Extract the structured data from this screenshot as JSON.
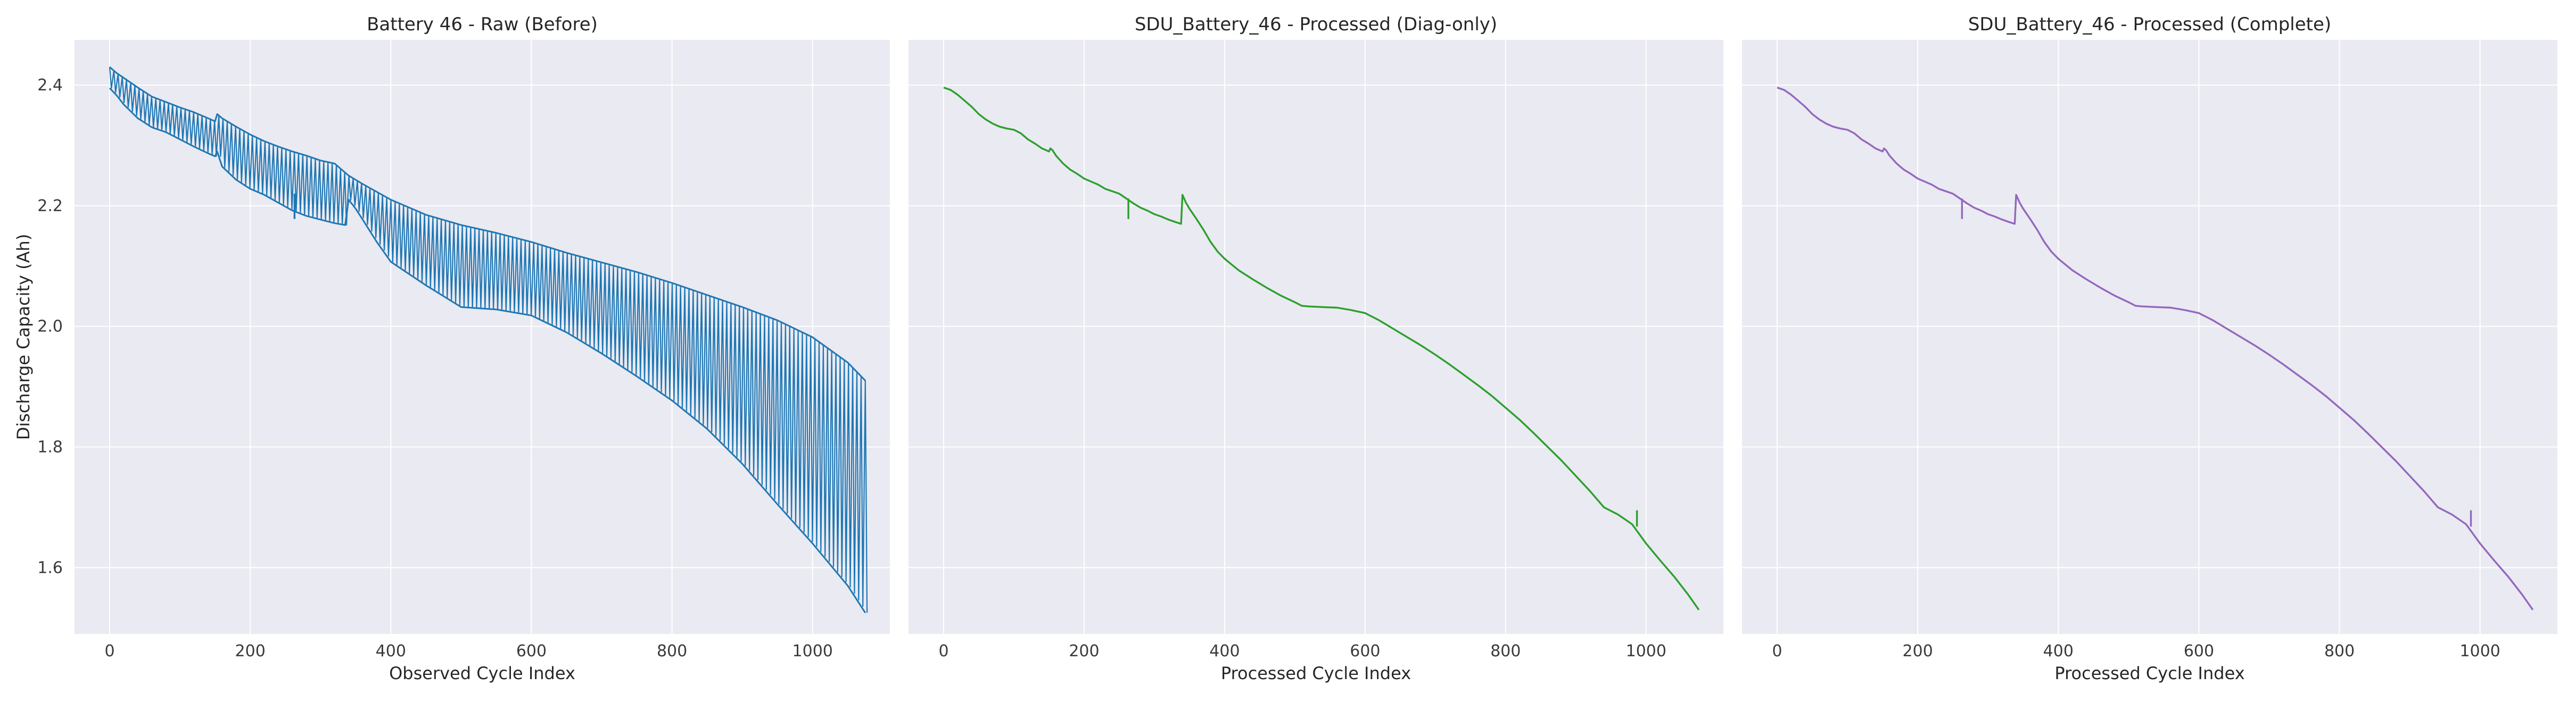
{
  "figure": {
    "sharey": true,
    "style": "seaborn-darkgrid",
    "colors": {
      "face": "#eaeaf2",
      "grid": "#ffffff",
      "text": "#262626"
    }
  },
  "chart_data": [
    {
      "type": "line",
      "title": "Battery 46 - Raw (Before)",
      "xlabel": "Observed Cycle Index",
      "ylabel": "Discharge Capacity (Ah)",
      "xlim": [
        -50,
        1110
      ],
      "ylim": [
        1.49,
        2.475
      ],
      "xticks": [
        0,
        200,
        400,
        600,
        800,
        1000
      ],
      "yticks": [
        1.6,
        1.8,
        2.0,
        2.2,
        2.4
      ],
      "color": "#1f77b4",
      "grid": true,
      "legend": "none",
      "oscillating_band": true,
      "upper_envelope": {
        "x": [
          0,
          10,
          20,
          40,
          60,
          80,
          100,
          120,
          140,
          150,
          153,
          160,
          180,
          200,
          220,
          240,
          260,
          280,
          300,
          320,
          340,
          360,
          380,
          400,
          450,
          500,
          550,
          600,
          650,
          700,
          750,
          800,
          850,
          900,
          950,
          1000,
          1050,
          1075
        ],
        "y": [
          2.43,
          2.42,
          2.412,
          2.396,
          2.381,
          2.372,
          2.363,
          2.355,
          2.345,
          2.34,
          2.352,
          2.345,
          2.331,
          2.318,
          2.307,
          2.298,
          2.29,
          2.283,
          2.275,
          2.27,
          2.25,
          2.236,
          2.223,
          2.21,
          2.185,
          2.168,
          2.155,
          2.14,
          2.122,
          2.106,
          2.09,
          2.072,
          2.052,
          2.032,
          2.01,
          1.982,
          1.94,
          1.91
        ]
      },
      "lower_envelope": {
        "x": [
          0,
          10,
          20,
          40,
          60,
          80,
          100,
          120,
          140,
          150,
          153,
          160,
          180,
          200,
          220,
          240,
          260,
          280,
          300,
          320,
          335,
          340,
          350,
          360,
          380,
          400,
          450,
          500,
          550,
          600,
          650,
          700,
          750,
          800,
          850,
          900,
          950,
          1000,
          1050,
          1075
        ],
        "y": [
          2.395,
          2.383,
          2.368,
          2.345,
          2.33,
          2.322,
          2.31,
          2.298,
          2.287,
          2.282,
          2.29,
          2.265,
          2.243,
          2.228,
          2.218,
          2.205,
          2.192,
          2.183,
          2.177,
          2.171,
          2.168,
          2.21,
          2.195,
          2.177,
          2.14,
          2.107,
          2.068,
          2.032,
          2.028,
          2.018,
          1.99,
          1.955,
          1.917,
          1.877,
          1.83,
          1.772,
          1.705,
          1.64,
          1.57,
          1.525
        ]
      },
      "spikes": [
        {
          "x": 263,
          "y_top": 2.22,
          "y_bottom": 2.178
        }
      ]
    },
    {
      "type": "line",
      "title": "SDU_Battery_46 - Processed (Diag-only)",
      "xlabel": "Processed Cycle Index",
      "ylabel": "",
      "xlim": [
        -50,
        1110
      ],
      "ylim": [
        1.49,
        2.475
      ],
      "xticks": [
        0,
        200,
        400,
        600,
        800,
        1000
      ],
      "yticks": [
        1.6,
        1.8,
        2.0,
        2.2,
        2.4
      ],
      "color": "#2ca02c",
      "grid": true,
      "legend": "none",
      "series": [
        {
          "x": [
            0,
            10,
            20,
            30,
            40,
            50,
            60,
            70,
            80,
            90,
            100,
            110,
            120,
            130,
            140,
            150,
            152,
            155,
            160,
            170,
            180,
            190,
            200,
            210,
            220,
            230,
            240,
            250,
            260,
            270,
            280,
            290,
            300,
            310,
            320,
            330,
            338,
            340,
            345,
            350,
            360,
            370,
            380,
            390,
            400,
            420,
            440,
            460,
            480,
            500,
            510,
            520,
            540,
            560,
            580,
            600,
            620,
            640,
            660,
            680,
            700,
            720,
            740,
            760,
            780,
            800,
            820,
            840,
            860,
            880,
            900,
            920,
            940,
            960,
            980,
            1000,
            1020,
            1040,
            1060,
            1075
          ],
          "y": [
            2.396,
            2.392,
            2.384,
            2.374,
            2.364,
            2.352,
            2.343,
            2.336,
            2.331,
            2.328,
            2.326,
            2.32,
            2.31,
            2.303,
            2.295,
            2.29,
            2.295,
            2.292,
            2.283,
            2.27,
            2.26,
            2.253,
            2.245,
            2.24,
            2.235,
            2.228,
            2.224,
            2.22,
            2.212,
            2.204,
            2.197,
            2.192,
            2.186,
            2.182,
            2.177,
            2.173,
            2.17,
            2.218,
            2.205,
            2.195,
            2.178,
            2.16,
            2.14,
            2.124,
            2.112,
            2.093,
            2.078,
            2.064,
            2.051,
            2.04,
            2.034,
            2.033,
            2.032,
            2.031,
            2.027,
            2.022,
            2.01,
            1.996,
            1.982,
            1.968,
            1.953,
            1.937,
            1.92,
            1.903,
            1.885,
            1.865,
            1.845,
            1.823,
            1.8,
            1.777,
            1.752,
            1.727,
            1.7,
            1.688,
            1.672,
            1.64,
            1.612,
            1.585,
            1.555,
            1.53
          ]
        }
      ],
      "spikes": [
        {
          "x": 263,
          "y_top": 2.212,
          "y_bottom": 2.178
        },
        {
          "x": 987,
          "y_top": 1.695,
          "y_bottom": 1.668
        }
      ]
    },
    {
      "type": "line",
      "title": "SDU_Battery_46 - Processed (Complete)",
      "xlabel": "Processed Cycle Index",
      "ylabel": "",
      "xlim": [
        -50,
        1110
      ],
      "ylim": [
        1.49,
        2.475
      ],
      "xticks": [
        0,
        200,
        400,
        600,
        800,
        1000
      ],
      "yticks": [
        1.6,
        1.8,
        2.0,
        2.2,
        2.4
      ],
      "color": "#9467bd",
      "grid": true,
      "legend": "none",
      "series": [
        {
          "x": [
            0,
            10,
            20,
            30,
            40,
            50,
            60,
            70,
            80,
            90,
            100,
            110,
            120,
            130,
            140,
            150,
            152,
            155,
            160,
            170,
            180,
            190,
            200,
            210,
            220,
            230,
            240,
            250,
            260,
            270,
            280,
            290,
            300,
            310,
            320,
            330,
            338,
            340,
            345,
            350,
            360,
            370,
            380,
            390,
            400,
            420,
            440,
            460,
            480,
            500,
            510,
            520,
            540,
            560,
            580,
            600,
            620,
            640,
            660,
            680,
            700,
            720,
            740,
            760,
            780,
            800,
            820,
            840,
            860,
            880,
            900,
            920,
            940,
            960,
            980,
            1000,
            1020,
            1040,
            1060,
            1075
          ],
          "y": [
            2.396,
            2.392,
            2.384,
            2.374,
            2.364,
            2.352,
            2.343,
            2.336,
            2.331,
            2.328,
            2.326,
            2.32,
            2.31,
            2.303,
            2.295,
            2.29,
            2.295,
            2.292,
            2.283,
            2.27,
            2.26,
            2.253,
            2.245,
            2.24,
            2.235,
            2.228,
            2.224,
            2.22,
            2.212,
            2.204,
            2.197,
            2.192,
            2.186,
            2.182,
            2.177,
            2.173,
            2.17,
            2.218,
            2.205,
            2.195,
            2.178,
            2.16,
            2.14,
            2.124,
            2.112,
            2.093,
            2.078,
            2.064,
            2.051,
            2.04,
            2.034,
            2.033,
            2.032,
            2.031,
            2.027,
            2.022,
            2.01,
            1.996,
            1.982,
            1.968,
            1.953,
            1.937,
            1.92,
            1.903,
            1.885,
            1.865,
            1.845,
            1.823,
            1.8,
            1.777,
            1.752,
            1.727,
            1.7,
            1.688,
            1.672,
            1.64,
            1.612,
            1.585,
            1.555,
            1.53
          ]
        }
      ],
      "spikes": [
        {
          "x": 263,
          "y_top": 2.212,
          "y_bottom": 2.178
        },
        {
          "x": 987,
          "y_top": 1.695,
          "y_bottom": 1.668
        }
      ]
    }
  ]
}
